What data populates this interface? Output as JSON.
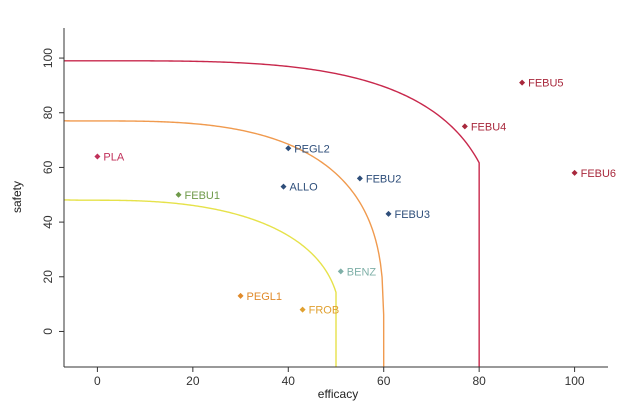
{
  "chart_data": {
    "type": "scatter",
    "title": "",
    "xlabel": "efficacy",
    "ylabel": "safety",
    "xlim": [
      -7,
      107
    ],
    "ylim": [
      -13,
      111
    ],
    "xticks": [
      0,
      20,
      40,
      60,
      80,
      100
    ],
    "yticks": [
      0,
      20,
      40,
      60,
      80,
      100
    ],
    "grid": false,
    "points": [
      {
        "label": "PLA",
        "x": 0,
        "y": 64,
        "color": "#c0305a"
      },
      {
        "label": "FEBU1",
        "x": 17,
        "y": 50,
        "color": "#6f9a4a"
      },
      {
        "label": "PEGL2",
        "x": 40,
        "y": 67,
        "color": "#2e4e7a"
      },
      {
        "label": "ALLO",
        "x": 39,
        "y": 53,
        "color": "#2e4e7a"
      },
      {
        "label": "FEBU2",
        "x": 55,
        "y": 56,
        "color": "#2e4e7a"
      },
      {
        "label": "FEBU3",
        "x": 61,
        "y": 43,
        "color": "#2e4e7a"
      },
      {
        "label": "BENZ",
        "x": 51,
        "y": 22,
        "color": "#7fb0a8"
      },
      {
        "label": "PEGL1",
        "x": 30,
        "y": 13,
        "color": "#e08a2a"
      },
      {
        "label": "FROB",
        "x": 43,
        "y": 8,
        "color": "#e0a030"
      },
      {
        "label": "FEBU4",
        "x": 77,
        "y": 75,
        "color": "#a8283c"
      },
      {
        "label": "FEBU5",
        "x": 89,
        "y": 91,
        "color": "#a8283c"
      },
      {
        "label": "FEBU6",
        "x": 100,
        "y": 58,
        "color": "#a8283c"
      }
    ],
    "curves": [
      {
        "color": "#e6e24a",
        "x_at_y0": 51,
        "y_at_x0": 48,
        "x_end": 50,
        "exponent": 2.5
      },
      {
        "color": "#f09a4e",
        "x_at_y0": 60,
        "y_at_x0": 77,
        "x_end": 60,
        "exponent": 3
      },
      {
        "color": "#c8284c",
        "x_at_y0": 85,
        "y_at_x0": 99,
        "x_end": 80,
        "exponent": 3.5
      }
    ]
  }
}
